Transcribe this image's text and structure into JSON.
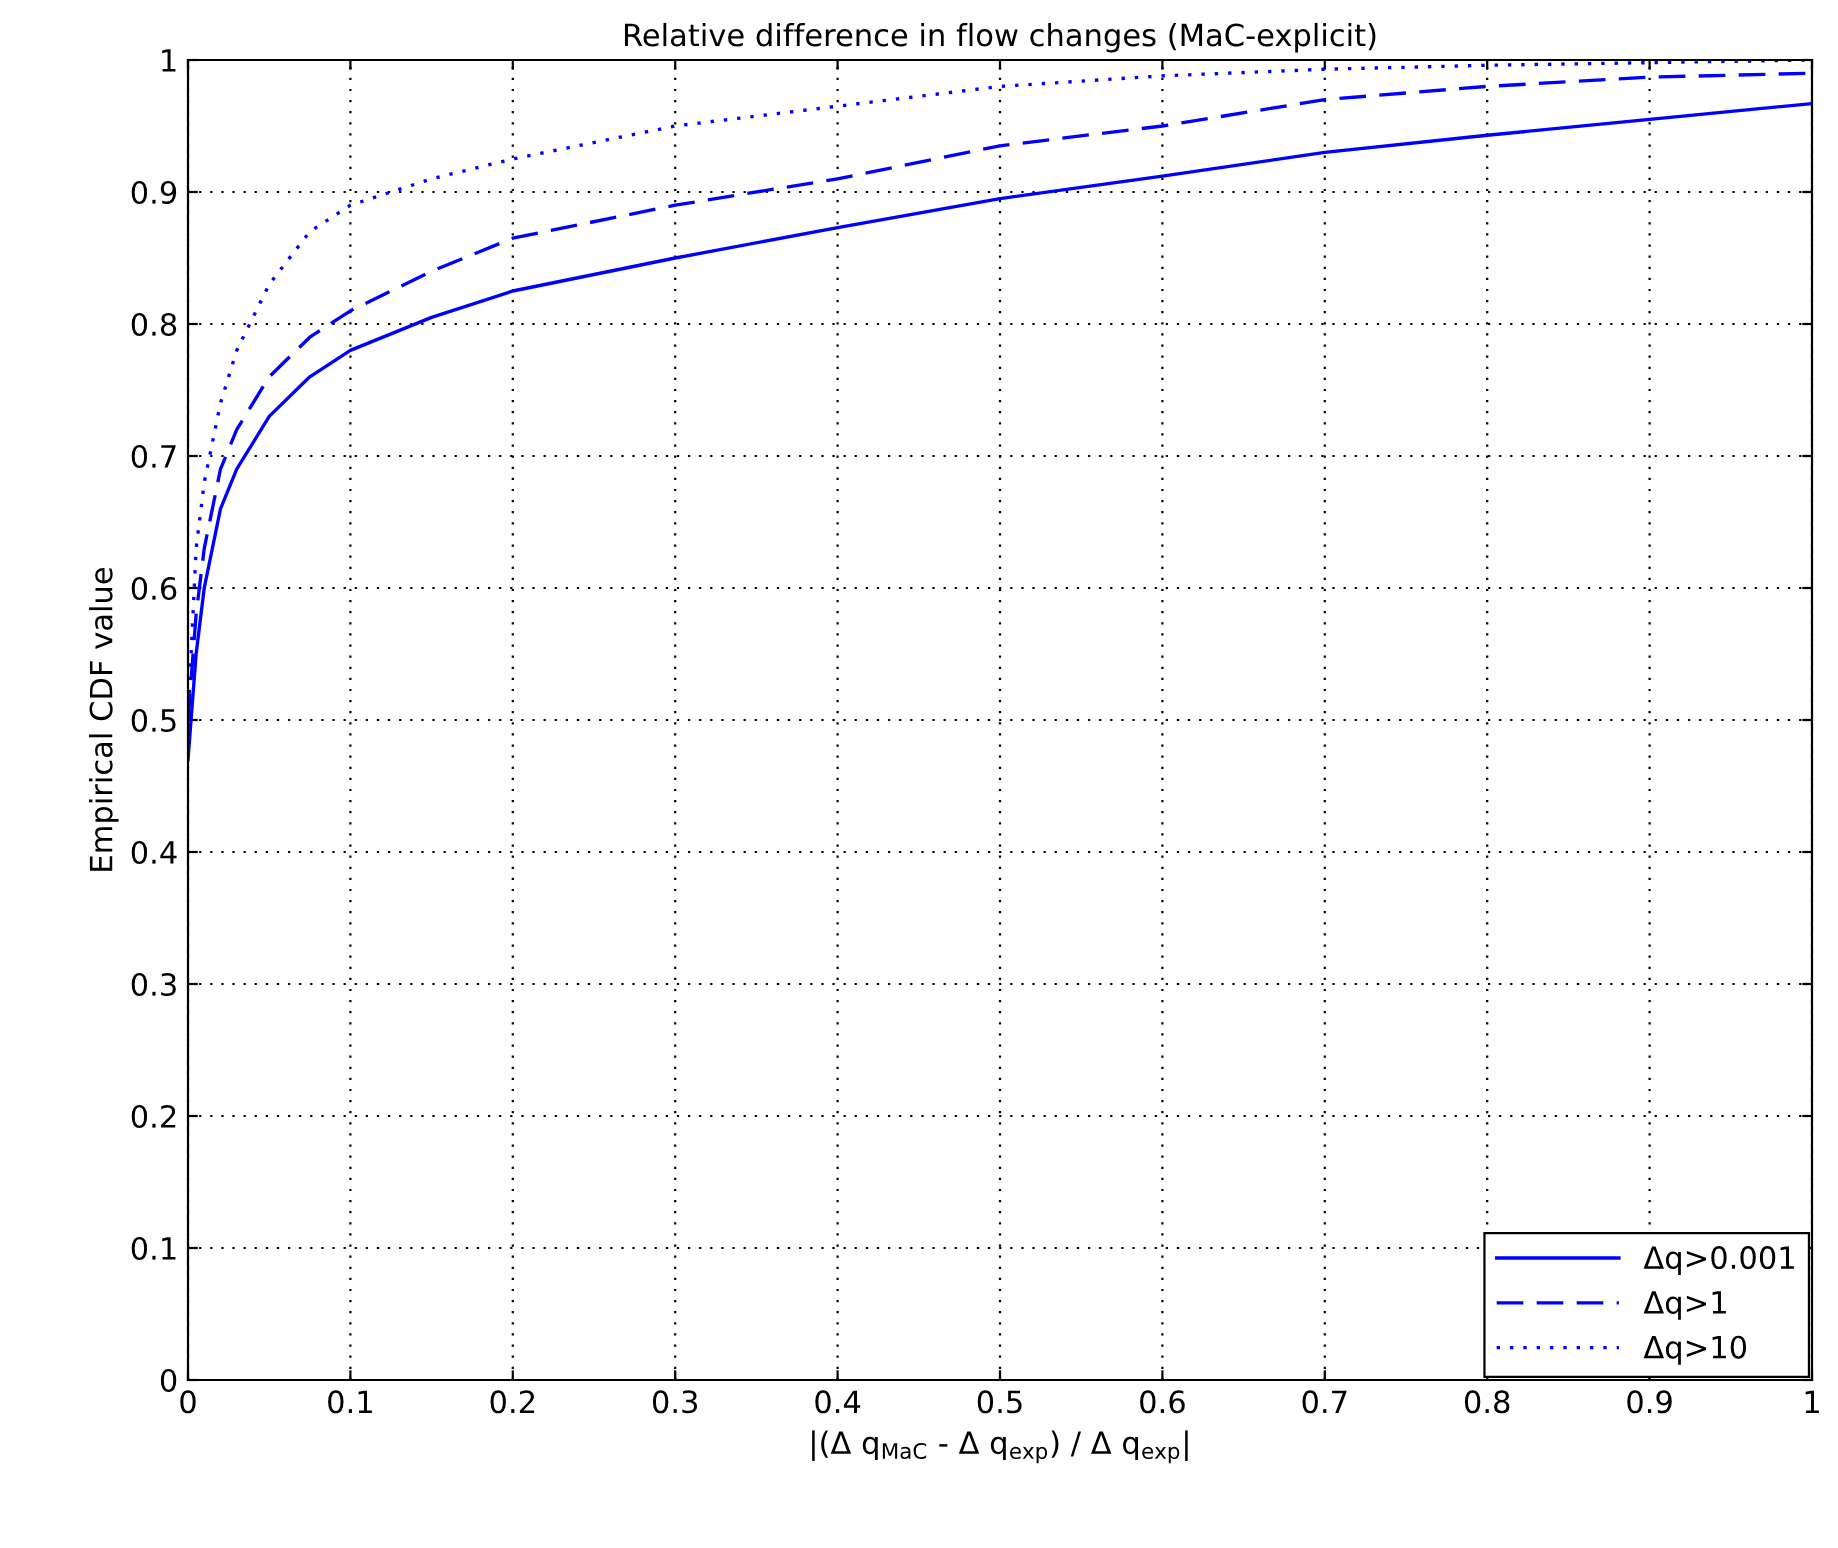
{
  "chart_data": {
    "type": "line",
    "title": "Relative difference in flow changes (MaC-explicit)",
    "xlabel": "|(Δ q$_{MaC}$ - Δ q$_{exp}$) / Δ q$_{exp}$|",
    "ylabel": "Empirical CDF value",
    "x": [
      0,
      0.005,
      0.01,
      0.02,
      0.03,
      0.05,
      0.075,
      0.1,
      0.15,
      0.2,
      0.3,
      0.4,
      0.5,
      0.6,
      0.7,
      0.8,
      0.9,
      1
    ],
    "series": [
      {
        "name": "Δq>0.001",
        "color": "#0000ff",
        "line_style": "solid",
        "values": [
          0.47,
          0.55,
          0.6,
          0.66,
          0.69,
          0.73,
          0.76,
          0.78,
          0.805,
          0.825,
          0.85,
          0.873,
          0.895,
          0.912,
          0.93,
          0.943,
          0.955,
          0.967
        ]
      },
      {
        "name": "Δq>1",
        "color": "#0000ff",
        "line_style": "dashed",
        "values": [
          0.5,
          0.58,
          0.63,
          0.69,
          0.72,
          0.76,
          0.79,
          0.81,
          0.84,
          0.865,
          0.89,
          0.91,
          0.935,
          0.95,
          0.97,
          0.98,
          0.987,
          0.99
        ]
      },
      {
        "name": "Δq>10",
        "color": "#0000ff",
        "line_style": "dotted",
        "values": [
          0.5,
          0.63,
          0.68,
          0.74,
          0.78,
          0.83,
          0.87,
          0.89,
          0.91,
          0.925,
          0.95,
          0.965,
          0.98,
          0.988,
          0.993,
          0.996,
          0.998,
          1.0
        ]
      }
    ],
    "xlim": [
      0,
      1
    ],
    "ylim": [
      0,
      1
    ],
    "xticks": [
      0,
      0.1,
      0.2,
      0.3,
      0.4,
      0.5,
      0.6,
      0.7,
      0.8,
      0.9,
      1
    ],
    "yticks": [
      0,
      0.1,
      0.2,
      0.3,
      0.4,
      0.5,
      0.6,
      0.7,
      0.8,
      0.9,
      1
    ],
    "grid": true,
    "legend": "bottom right",
    "marker": "none"
  }
}
